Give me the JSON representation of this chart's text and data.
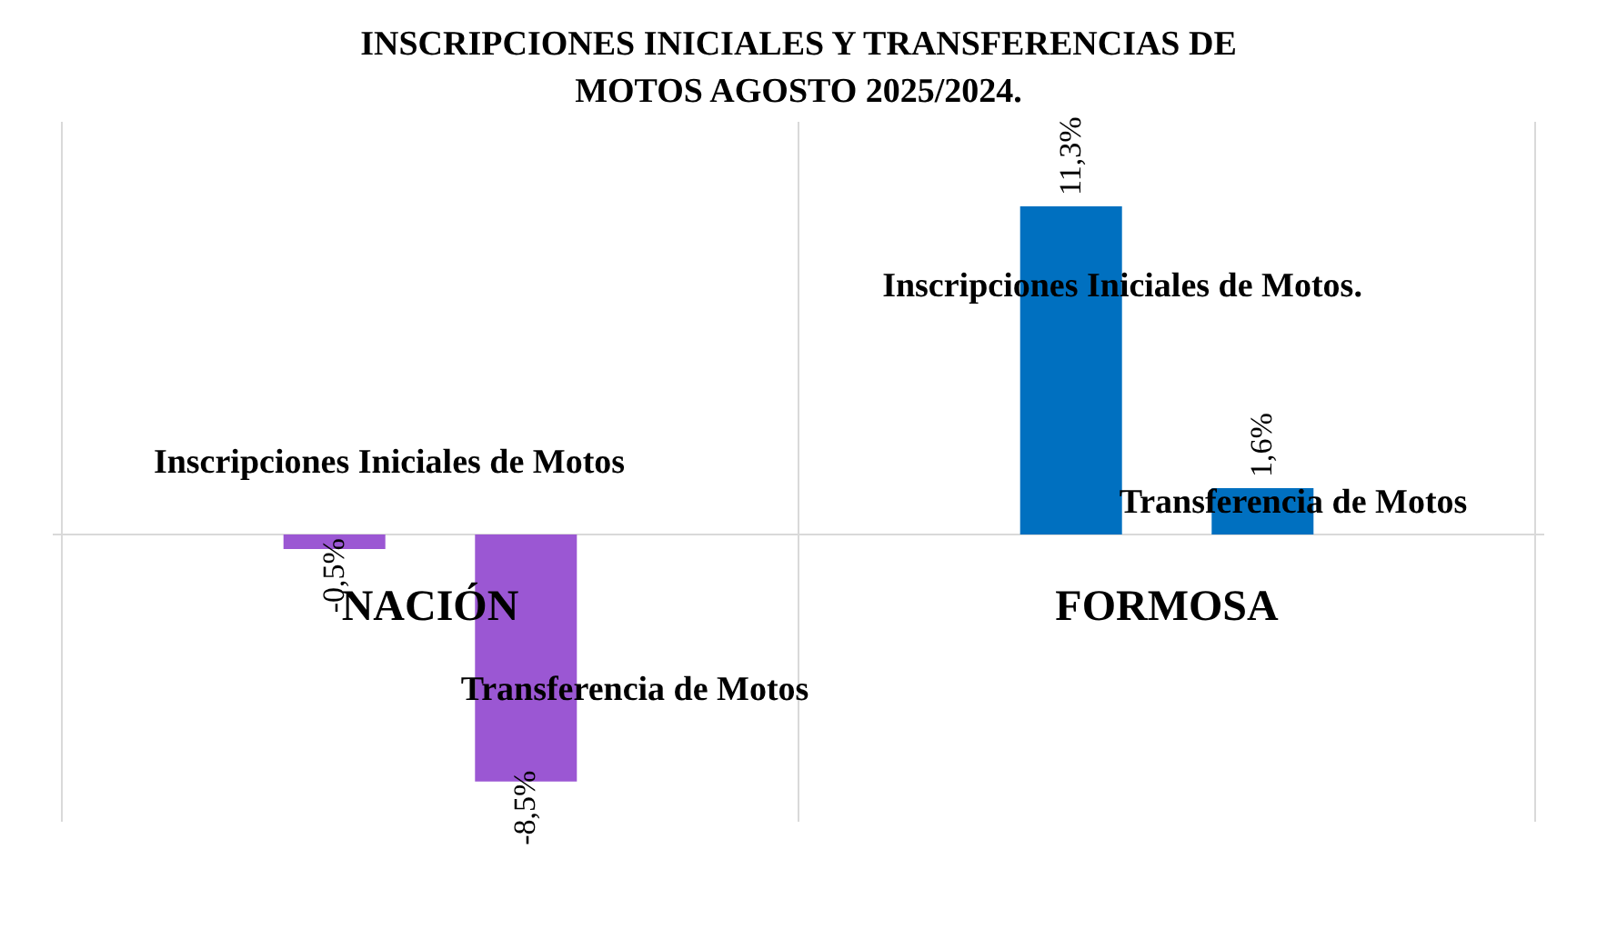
{
  "chart_data": {
    "type": "bar",
    "title": "INSCRIPCIONES INICIALES Y TRANSFERENCIAS DE MOTOS AGOSTO 2025/2024.",
    "categories": [
      "NACIÓN",
      "FORMOSA"
    ],
    "series": [
      {
        "colors": [
          "#9b57d3",
          "#0070c0"
        ],
        "values": [
          -0.5,
          11.3
        ],
        "value_labels": [
          "-0,5%",
          "11,3%"
        ]
      },
      {
        "colors": [
          "#9b57d3",
          "#0070c0"
        ],
        "values": [
          -8.5,
          1.6
        ],
        "value_labels": [
          "-8,5%",
          "1,6%"
        ]
      }
    ],
    "annotations": [
      "Inscripciones Iniciales de Motos",
      "Transferencia de Motos",
      "Inscripciones Iniciales de Motos.",
      "Transferencia de Motos"
    ],
    "grid": "x"
  }
}
